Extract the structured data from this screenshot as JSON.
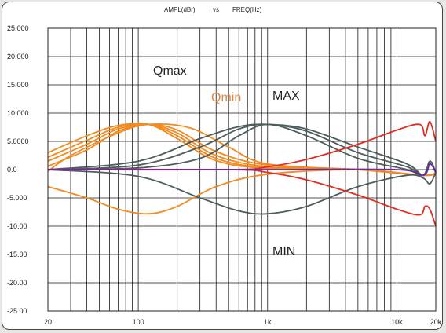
{
  "chart_data": {
    "type": "line",
    "header": {
      "left": "AMPL(dBr)",
      "mid": "vs",
      "right": "FREQ(Hz)"
    },
    "x_scale": "log",
    "xlim": [
      20,
      20000
    ],
    "x_ticks": [
      20,
      100,
      1000,
      10000,
      20000
    ],
    "x_tick_labels": [
      "20",
      "100",
      "1k",
      "10k",
      "20k"
    ],
    "ylim": [
      -25,
      25
    ],
    "y_ticks": [
      25,
      20,
      15,
      10,
      5,
      0,
      -5,
      -10,
      -15,
      -20,
      -25
    ],
    "y_tick_labels": [
      "25.000",
      "20.000",
      "15.000",
      "10.000",
      "5.0000",
      "0.0",
      "-5.000",
      "-10.00",
      "-15.00",
      "-20.00",
      "-25.00"
    ],
    "grid": true,
    "annotations": [
      {
        "text": "Qmax",
        "color": "#222222"
      },
      {
        "text": "Qmin",
        "color": "#d9864a"
      },
      {
        "text": "MAX",
        "color": "#222222"
      },
      {
        "text": "MIN",
        "color": "#222222"
      }
    ],
    "colors": {
      "orange": "#f28a20",
      "gray": "#4d5c5c",
      "red": "#e52a20",
      "purple": "#6a2aa0"
    },
    "series": [
      {
        "color": "#f28a20",
        "points": [
          [
            20,
            1.5
          ],
          [
            40,
            4.5
          ],
          [
            70,
            7.2
          ],
          [
            120,
            8
          ],
          [
            200,
            6.5
          ],
          [
            400,
            2.5
          ],
          [
            1000,
            0.5
          ],
          [
            5000,
            0
          ],
          [
            16000,
            -1
          ],
          [
            20000,
            -0.5
          ]
        ]
      },
      {
        "color": "#f28a20",
        "points": [
          [
            20,
            2.2
          ],
          [
            40,
            5.2
          ],
          [
            70,
            7.5
          ],
          [
            120,
            8
          ],
          [
            200,
            6
          ],
          [
            400,
            2
          ],
          [
            1000,
            0.3
          ],
          [
            5000,
            0
          ],
          [
            16000,
            -1
          ],
          [
            20000,
            -0.5
          ]
        ]
      },
      {
        "color": "#f28a20",
        "points": [
          [
            20,
            3
          ],
          [
            40,
            6
          ],
          [
            70,
            7.8
          ],
          [
            120,
            8
          ],
          [
            200,
            5.5
          ],
          [
            400,
            1.6
          ],
          [
            1000,
            0.2
          ],
          [
            5000,
            0
          ],
          [
            16000,
            -1
          ],
          [
            20000,
            -0.5
          ]
        ]
      },
      {
        "color": "#f28a20",
        "points": [
          [
            20,
            0.6
          ],
          [
            40,
            3.5
          ],
          [
            70,
            6.8
          ],
          [
            120,
            8
          ],
          [
            200,
            7
          ],
          [
            400,
            3.2
          ],
          [
            1000,
            0.8
          ],
          [
            5000,
            0
          ],
          [
            16000,
            -1
          ],
          [
            20000,
            -0.5
          ]
        ]
      },
      {
        "color": "#f28a20",
        "points": [
          [
            20,
            -0.3
          ],
          [
            30,
            2.5
          ],
          [
            70,
            6.5
          ],
          [
            120,
            8
          ],
          [
            250,
            7.4
          ],
          [
            500,
            4
          ],
          [
            1000,
            1
          ],
          [
            5000,
            0
          ],
          [
            16000,
            -1
          ],
          [
            20000,
            -0.5
          ]
        ]
      },
      {
        "color": "#f28a20",
        "points": [
          [
            20,
            -3
          ],
          [
            40,
            -5
          ],
          [
            70,
            -7
          ],
          [
            120,
            -7.8
          ],
          [
            200,
            -6.5
          ],
          [
            400,
            -3
          ],
          [
            1000,
            -0.8
          ],
          [
            5000,
            0
          ],
          [
            16000,
            -1
          ],
          [
            20000,
            -0.5
          ]
        ]
      },
      {
        "color": "#4d5c5c",
        "points": [
          [
            20,
            0
          ],
          [
            100,
            0.3
          ],
          [
            300,
            2
          ],
          [
            600,
            6
          ],
          [
            1000,
            8
          ],
          [
            2000,
            6
          ],
          [
            5000,
            2
          ],
          [
            12000,
            0
          ],
          [
            16000,
            -1
          ],
          [
            18000,
            1.5
          ],
          [
            20000,
            -0.5
          ]
        ]
      },
      {
        "color": "#4d5c5c",
        "points": [
          [
            20,
            0
          ],
          [
            100,
            0.8
          ],
          [
            300,
            4
          ],
          [
            600,
            7.2
          ],
          [
            1000,
            8
          ],
          [
            2000,
            6.8
          ],
          [
            5000,
            3
          ],
          [
            12000,
            0.5
          ],
          [
            16000,
            -1
          ],
          [
            18000,
            1.5
          ],
          [
            20000,
            -0.5
          ]
        ]
      },
      {
        "color": "#4d5c5c",
        "points": [
          [
            20,
            0
          ],
          [
            100,
            1.5
          ],
          [
            300,
            5.5
          ],
          [
            600,
            7.6
          ],
          [
            1000,
            8
          ],
          [
            2000,
            7.2
          ],
          [
            5000,
            4
          ],
          [
            12000,
            1
          ],
          [
            16000,
            -1
          ],
          [
            18000,
            1.5
          ],
          [
            20000,
            -0.5
          ]
        ]
      },
      {
        "color": "#4d5c5c",
        "points": [
          [
            20,
            0
          ],
          [
            100,
            -1.2
          ],
          [
            300,
            -5
          ],
          [
            600,
            -7.3
          ],
          [
            1000,
            -7.8
          ],
          [
            2000,
            -6.5
          ],
          [
            5000,
            -3
          ],
          [
            12000,
            -1
          ],
          [
            16000,
            -1.5
          ],
          [
            18000,
            -2.5
          ],
          [
            20000,
            -0.5
          ]
        ]
      },
      {
        "color": "#e52a20",
        "points": [
          [
            20,
            0
          ],
          [
            500,
            0
          ],
          [
            1000,
            0.5
          ],
          [
            2000,
            1.8
          ],
          [
            5000,
            4.5
          ],
          [
            10000,
            7
          ],
          [
            15000,
            8
          ],
          [
            16500,
            6
          ],
          [
            18000,
            8.5
          ],
          [
            20000,
            5
          ]
        ]
      },
      {
        "color": "#e52a20",
        "points": [
          [
            20,
            0
          ],
          [
            500,
            0
          ],
          [
            1000,
            -0.5
          ],
          [
            2000,
            -1.8
          ],
          [
            5000,
            -4.5
          ],
          [
            10000,
            -7
          ],
          [
            15000,
            -8
          ],
          [
            16500,
            -6.5
          ],
          [
            18000,
            -7
          ],
          [
            20000,
            -10
          ]
        ]
      },
      {
        "color": "#6a2aa0",
        "points": [
          [
            20,
            0
          ],
          [
            1000,
            0
          ],
          [
            10000,
            0
          ],
          [
            16000,
            -1
          ],
          [
            18000,
            1
          ],
          [
            20000,
            -0.5
          ]
        ]
      }
    ]
  }
}
